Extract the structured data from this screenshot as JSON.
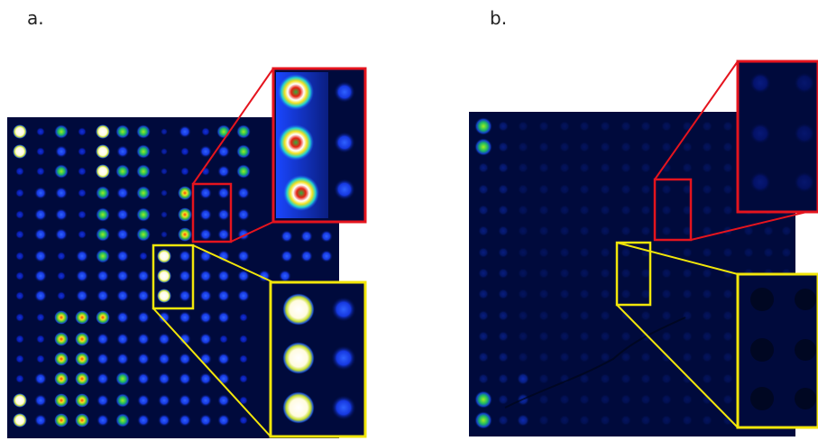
{
  "panels": [
    {
      "label": "a."
    },
    {
      "label": "b."
    }
  ],
  "colors": {
    "background": "#000a3c",
    "zoom_red": "#e5141e",
    "zoom_yellow": "#f2e60a"
  },
  "heatmap_scale": [
    "dark-blue",
    "blue",
    "cyan",
    "green",
    "yellow",
    "red",
    "white"
  ]
}
